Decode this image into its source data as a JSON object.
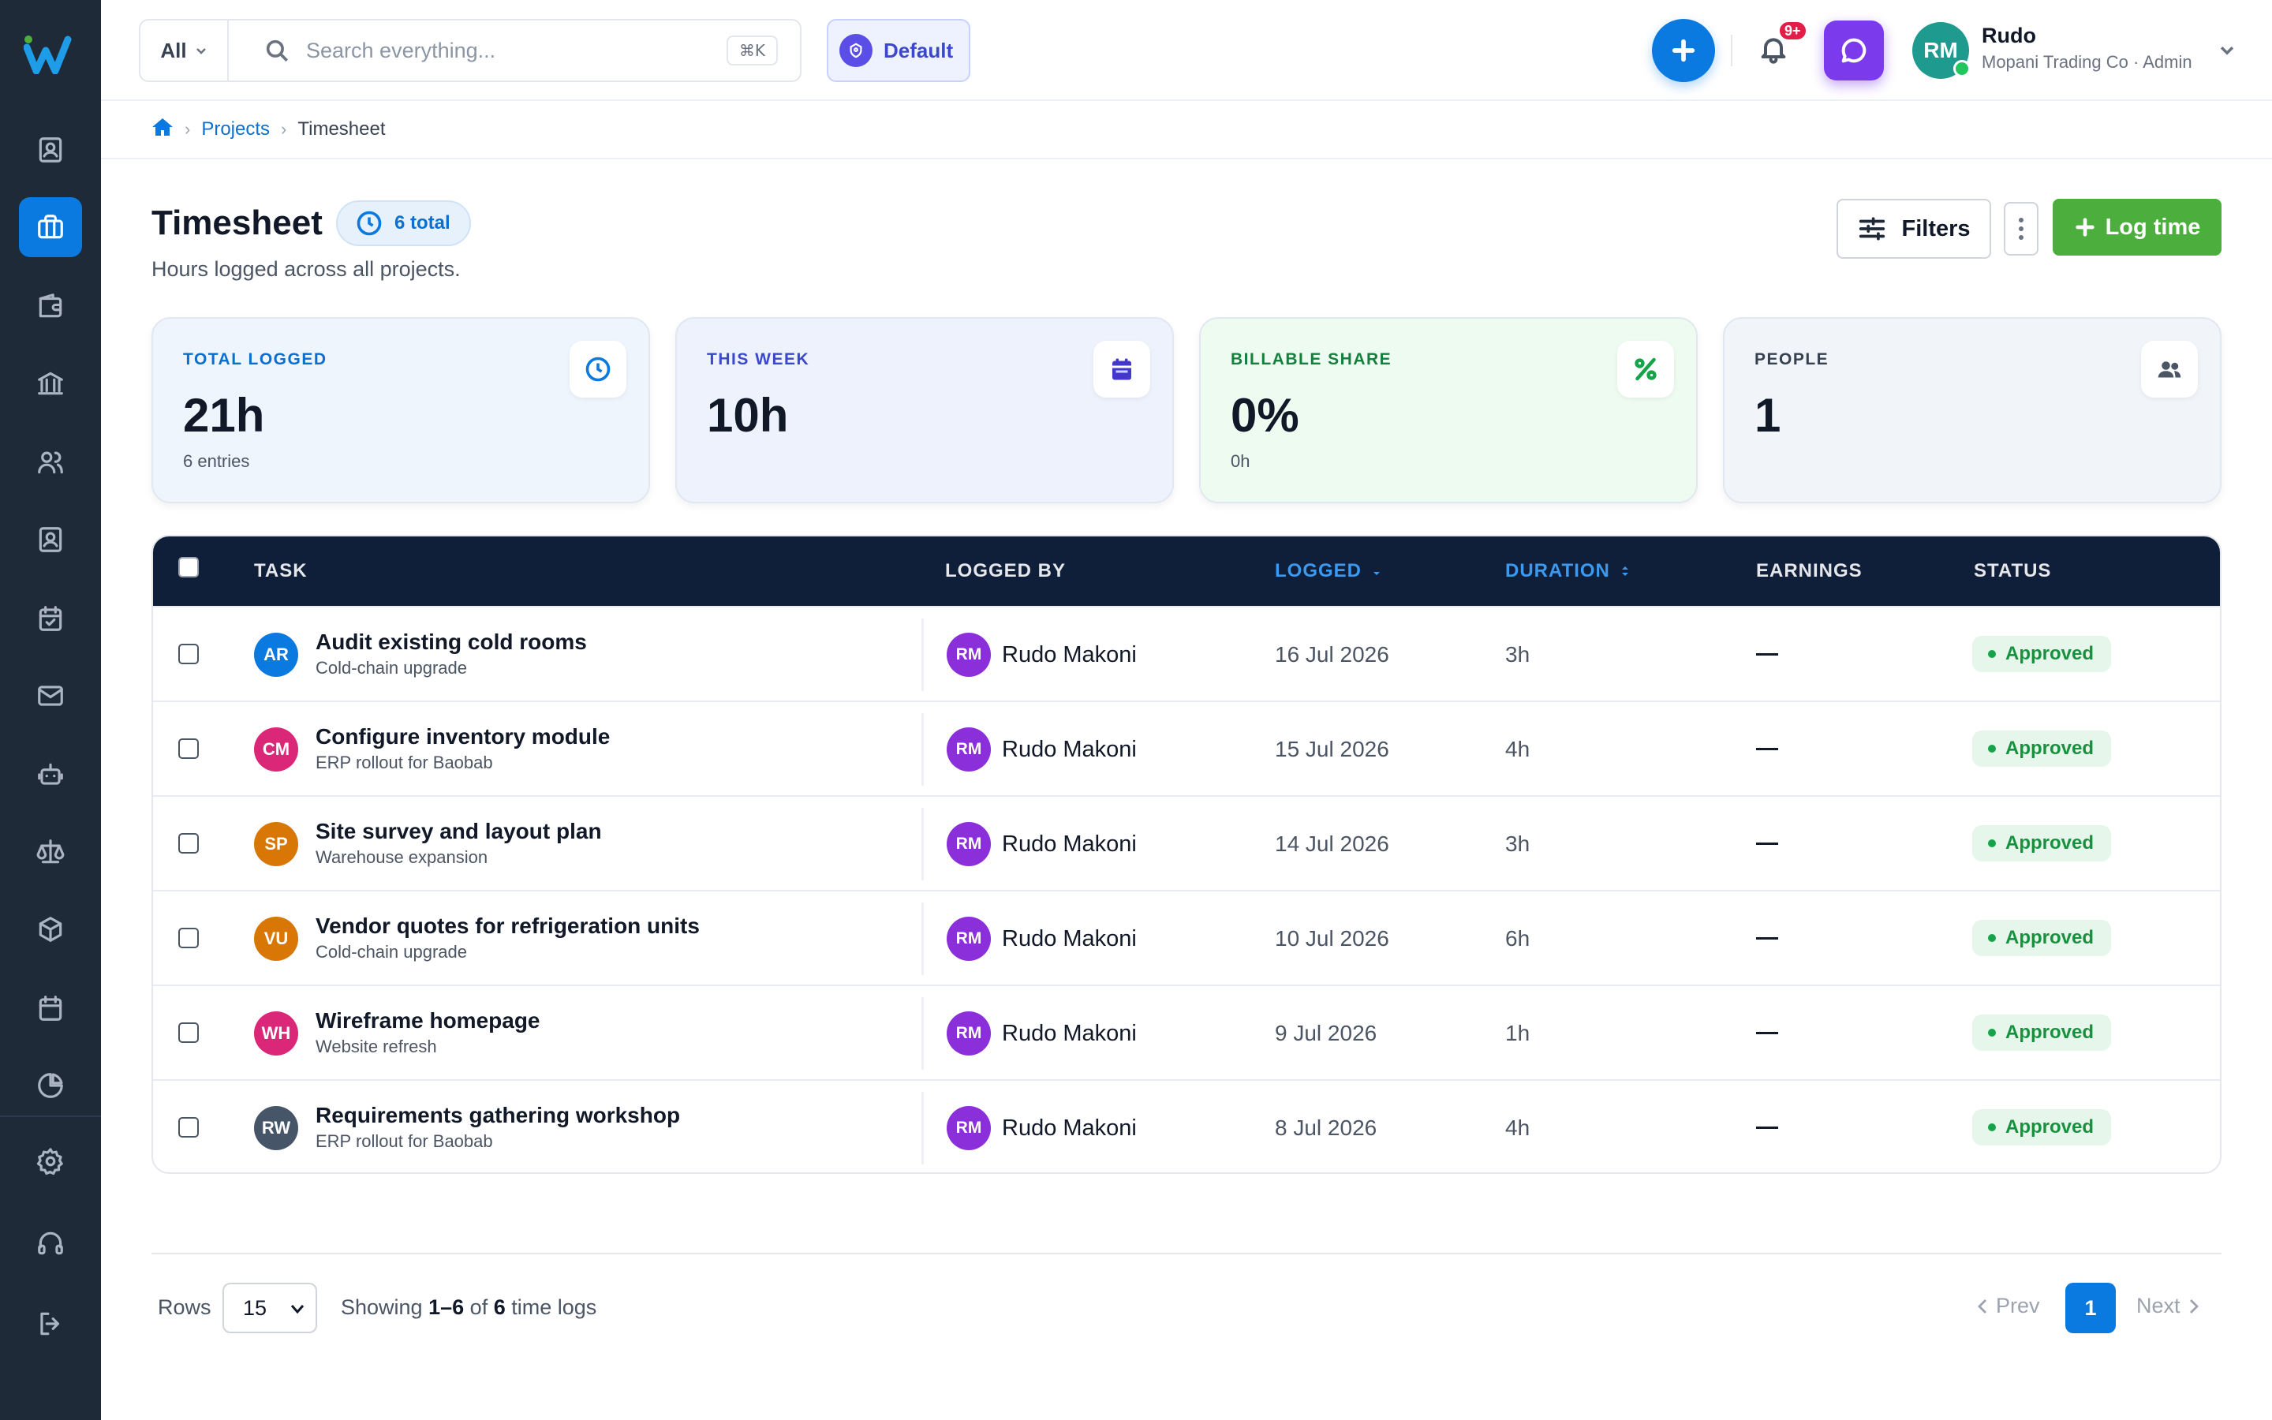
{
  "topbar": {
    "scope_label": "All",
    "search_placeholder": "Search everything...",
    "shortcut": "⌘K",
    "workspace": "Default",
    "notification_badge": "9+",
    "user_initials": "RM",
    "user_name": "Rudo",
    "user_org": "Mopani Trading Co · Admin"
  },
  "breadcrumb": {
    "projects": "Projects",
    "current": "Timesheet"
  },
  "page": {
    "title": "Timesheet",
    "total_badge": "6 total",
    "subtitle": "Hours logged across all projects.",
    "filters_label": "Filters",
    "log_time_label": "Log time"
  },
  "stats": [
    {
      "label": "TOTAL LOGGED",
      "value": "21h",
      "sub": "6 entries",
      "bg": "#eef5fd",
      "label_color": "#0b6fcf",
      "icon": "clock-icon"
    },
    {
      "label": "THIS WEEK",
      "value": "10h",
      "sub": "",
      "bg": "#eef2fc",
      "label_color": "#3b49c9",
      "icon": "calendar-icon"
    },
    {
      "label": "BILLABLE SHARE",
      "value": "0%",
      "sub": "0h",
      "bg": "#eefbf1",
      "label_color": "#15803d",
      "icon": "percent-icon"
    },
    {
      "label": "PEOPLE",
      "value": "1",
      "sub": "",
      "bg": "#f1f4f8",
      "label_color": "#374151",
      "icon": "users-icon"
    }
  ],
  "table": {
    "headers": {
      "task": "TASK",
      "logged_by": "LOGGED BY",
      "logged": "LOGGED",
      "duration": "DURATION",
      "earnings": "EARNINGS",
      "status": "STATUS"
    },
    "rows": [
      {
        "initials": "AR",
        "color": "#0b7ae0",
        "task": "Audit existing cold rooms",
        "project": "Cold-chain upgrade",
        "by_initials": "RM",
        "by": "Rudo Makoni",
        "logged": "16 Jul 2026",
        "duration": "3h",
        "earnings": "—",
        "status": "Approved"
      },
      {
        "initials": "CM",
        "color": "#db2777",
        "task": "Configure inventory module",
        "project": "ERP rollout for Baobab",
        "by_initials": "RM",
        "by": "Rudo Makoni",
        "logged": "15 Jul 2026",
        "duration": "4h",
        "earnings": "—",
        "status": "Approved"
      },
      {
        "initials": "SP",
        "color": "#d97706",
        "task": "Site survey and layout plan",
        "project": "Warehouse expansion",
        "by_initials": "RM",
        "by": "Rudo Makoni",
        "logged": "14 Jul 2026",
        "duration": "3h",
        "earnings": "—",
        "status": "Approved"
      },
      {
        "initials": "VU",
        "color": "#d97706",
        "task": "Vendor quotes for refrigeration units",
        "project": "Cold-chain upgrade",
        "by_initials": "RM",
        "by": "Rudo Makoni",
        "logged": "10 Jul 2026",
        "duration": "6h",
        "earnings": "—",
        "status": "Approved"
      },
      {
        "initials": "WH",
        "color": "#db2777",
        "task": "Wireframe homepage",
        "project": "Website refresh",
        "by_initials": "RM",
        "by": "Rudo Makoni",
        "logged": "9 Jul 2026",
        "duration": "1h",
        "earnings": "—",
        "status": "Approved"
      },
      {
        "initials": "RW",
        "color": "#475569",
        "task": "Requirements gathering workshop",
        "project": "ERP rollout for Baobab",
        "by_initials": "RM",
        "by": "Rudo Makoni",
        "logged": "8 Jul 2026",
        "duration": "4h",
        "earnings": "—",
        "status": "Approved"
      }
    ]
  },
  "pagination": {
    "rows_label": "Rows",
    "rows_value": "15",
    "showing_prefix": "Showing",
    "showing_range": "1–6",
    "showing_of": "of",
    "showing_total": "6",
    "showing_suffix": "time logs",
    "prev": "Prev",
    "page": "1",
    "next": "Next"
  },
  "colors": {
    "accent": "#0b7ae0",
    "sidebar": "#1e2a38",
    "table_header": "#0f1f3a",
    "success": "#4cae3d"
  }
}
